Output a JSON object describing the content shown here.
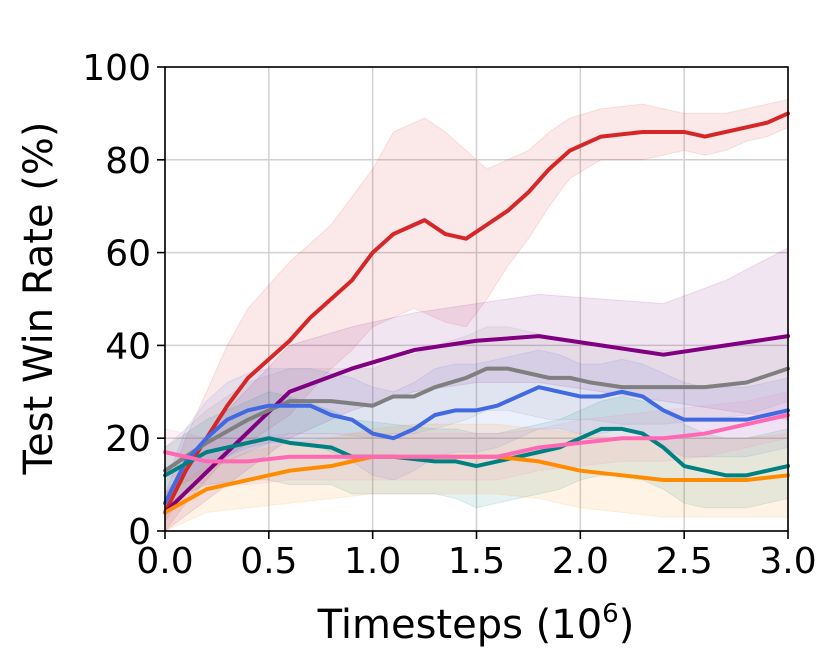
{
  "chart_data": {
    "type": "line",
    "xlabel": "Timesteps (10",
    "xlabel_exponent": "6",
    "xlabel_close": ")",
    "ylabel": "Test Win Rate (%)",
    "xlim": [
      0,
      3.0
    ],
    "ylim": [
      0,
      100
    ],
    "x_ticks": [
      "0.0",
      "0.5",
      "1.0",
      "1.5",
      "2.0",
      "2.5",
      "3.0"
    ],
    "y_ticks": [
      "0",
      "20",
      "40",
      "60",
      "80",
      "100"
    ],
    "grid": true,
    "legend": "none",
    "shaded_bands": true,
    "series": [
      {
        "color": "#d62728",
        "x": [
          0,
          0.1,
          0.2,
          0.3,
          0.4,
          0.5,
          0.6,
          0.7,
          0.8,
          0.9,
          1.0,
          1.1,
          1.2,
          1.25,
          1.35,
          1.45,
          1.55,
          1.65,
          1.75,
          1.85,
          1.95,
          2.1,
          2.3,
          2.5,
          2.6,
          2.7,
          2.8,
          2.9,
          3.0
        ],
        "y": [
          4,
          13,
          20,
          27,
          33,
          37,
          41,
          46,
          50,
          54,
          60,
          64,
          66,
          67,
          64,
          63,
          66,
          69,
          73,
          78,
          82,
          85,
          86,
          86,
          85,
          86,
          87,
          88,
          90
        ],
        "upper": [
          8,
          20,
          30,
          40,
          48,
          53,
          58,
          62,
          66,
          72,
          78,
          86,
          88,
          89,
          86,
          82,
          78,
          80,
          82,
          86,
          89,
          91,
          92,
          90,
          90,
          90,
          91,
          92,
          93
        ],
        "lower": [
          0,
          6,
          11,
          16,
          19,
          22,
          25,
          30,
          35,
          39,
          44,
          46,
          48,
          47,
          45,
          44,
          50,
          57,
          63,
          70,
          76,
          80,
          80,
          82,
          81,
          82,
          84,
          85,
          87
        ]
      },
      {
        "color": "#800080",
        "x": [
          0,
          0.3,
          0.6,
          0.9,
          1.2,
          1.5,
          1.8,
          2.1,
          2.4,
          2.7,
          3.0
        ],
        "y": [
          4,
          17,
          30,
          35,
          39,
          41,
          42,
          40,
          38,
          40,
          42
        ],
        "upper": [
          8,
          26,
          40,
          44,
          47,
          49,
          51,
          50,
          49,
          54,
          61
        ],
        "lower": [
          0,
          10,
          20,
          26,
          30,
          32,
          32,
          30,
          28,
          26,
          24
        ]
      },
      {
        "color": "#7f7f7f",
        "x": [
          0,
          0.2,
          0.4,
          0.6,
          0.8,
          1.0,
          1.1,
          1.2,
          1.3,
          1.45,
          1.55,
          1.65,
          1.75,
          1.85,
          1.95,
          2.05,
          2.2,
          2.4,
          2.6,
          2.8,
          3.0
        ],
        "y": [
          13,
          19,
          24,
          28,
          28,
          27,
          29,
          29,
          31,
          33,
          35,
          35,
          34,
          33,
          33,
          32,
          31,
          31,
          31,
          32,
          35
        ],
        "upper": [
          18,
          26,
          32,
          35,
          35,
          35,
          37,
          38,
          40,
          42,
          44,
          44,
          43,
          42,
          41,
          40,
          39,
          39,
          39,
          40,
          42
        ],
        "lower": [
          8,
          13,
          17,
          21,
          21,
          20,
          21,
          21,
          22,
          24,
          26,
          26,
          25,
          24,
          24,
          24,
          23,
          23,
          24,
          25,
          28
        ]
      },
      {
        "color": "#4169e1",
        "x": [
          0,
          0.1,
          0.2,
          0.3,
          0.4,
          0.5,
          0.6,
          0.7,
          0.8,
          0.9,
          1.0,
          1.1,
          1.2,
          1.3,
          1.4,
          1.5,
          1.6,
          1.7,
          1.8,
          1.9,
          2.0,
          2.1,
          2.2,
          2.3,
          2.4,
          2.5,
          2.6,
          2.7,
          2.8,
          2.9,
          3.0
        ],
        "y": [
          6,
          15,
          20,
          24,
          26,
          27,
          27,
          27,
          25,
          24,
          21,
          20,
          22,
          25,
          26,
          26,
          27,
          29,
          31,
          30,
          29,
          29,
          30,
          29,
          26,
          24,
          24,
          24,
          24,
          25,
          26
        ],
        "upper": [
          10,
          22,
          28,
          32,
          34,
          35,
          35,
          35,
          34,
          33,
          31,
          30,
          32,
          35,
          36,
          36,
          37,
          38,
          39,
          38,
          36,
          36,
          37,
          36,
          34,
          32,
          31,
          31,
          31,
          32,
          33
        ],
        "lower": [
          2,
          9,
          13,
          16,
          18,
          19,
          19,
          19,
          17,
          15,
          12,
          11,
          13,
          16,
          17,
          17,
          18,
          20,
          22,
          22,
          21,
          21,
          22,
          21,
          18,
          16,
          16,
          16,
          16,
          17,
          18
        ]
      },
      {
        "color": "#008080",
        "x": [
          0,
          0.2,
          0.4,
          0.5,
          0.6,
          0.8,
          0.9,
          1.1,
          1.3,
          1.4,
          1.5,
          1.6,
          1.7,
          1.8,
          1.9,
          2.0,
          2.1,
          2.2,
          2.3,
          2.4,
          2.5,
          2.6,
          2.7,
          2.8,
          2.9,
          3.0
        ],
        "y": [
          12,
          17,
          19,
          20,
          19,
          18,
          16,
          16,
          15,
          15,
          14,
          15,
          16,
          17,
          18,
          20,
          22,
          22,
          21,
          18,
          14,
          13,
          12,
          12,
          13,
          14
        ],
        "upper": [
          18,
          24,
          28,
          30,
          29,
          26,
          24,
          23,
          22,
          22,
          21,
          21,
          22,
          23,
          24,
          26,
          28,
          29,
          28,
          26,
          23,
          21,
          20,
          20,
          21,
          22
        ],
        "lower": [
          6,
          10,
          11,
          11,
          10,
          10,
          8,
          8,
          8,
          7,
          5,
          6,
          7,
          8,
          9,
          11,
          12,
          12,
          11,
          9,
          6,
          5,
          5,
          5,
          6,
          7
        ]
      },
      {
        "color": "#ff8c00",
        "x": [
          0,
          0.2,
          0.4,
          0.6,
          0.8,
          1.0,
          1.2,
          1.4,
          1.6,
          1.8,
          2.0,
          2.2,
          2.4,
          2.6,
          2.8,
          3.0
        ],
        "y": [
          4,
          9,
          11,
          13,
          14,
          16,
          16,
          16,
          16,
          15,
          13,
          12,
          11,
          11,
          11,
          12
        ],
        "upper": [
          8,
          14,
          17,
          19,
          20,
          22,
          23,
          23,
          23,
          22,
          21,
          20,
          20,
          20,
          20,
          21
        ],
        "lower": [
          0,
          4,
          5,
          6,
          7,
          8,
          8,
          8,
          8,
          7,
          5,
          4,
          3,
          3,
          3,
          3
        ]
      },
      {
        "color": "#ff69b4",
        "x": [
          0,
          0.2,
          0.4,
          0.6,
          0.8,
          1.0,
          1.2,
          1.4,
          1.6,
          1.8,
          2.0,
          2.2,
          2.4,
          2.6,
          2.8,
          3.0
        ],
        "y": [
          17,
          15,
          15,
          16,
          16,
          16,
          16,
          16,
          16,
          18,
          19,
          20,
          20,
          21,
          23,
          25
        ],
        "upper": [
          22,
          20,
          20,
          21,
          21,
          21,
          21,
          21,
          21,
          22,
          24,
          25,
          26,
          27,
          28,
          30
        ],
        "lower": [
          12,
          10,
          10,
          11,
          11,
          11,
          11,
          11,
          11,
          13,
          14,
          15,
          15,
          16,
          18,
          20
        ]
      }
    ]
  }
}
